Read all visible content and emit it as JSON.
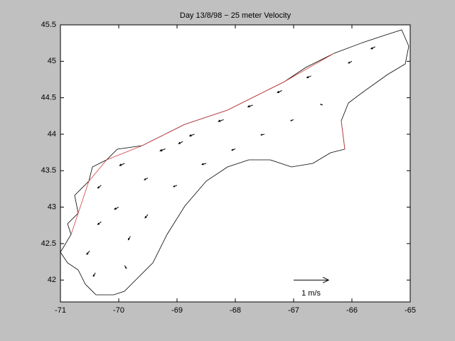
{
  "chart_data": {
    "type": "quiver",
    "title": "Day 13/8/98 − 25 meter Velocity",
    "xlim": [
      -71,
      -65
    ],
    "ylim": [
      41.7,
      45.5
    ],
    "xticks": [
      -71,
      -70,
      -69,
      -68,
      -67,
      -66,
      -65
    ],
    "yticks": [
      42,
      42.5,
      43,
      43.5,
      44,
      44.5,
      45,
      45.5
    ],
    "color": "#000000",
    "x": [
      -70.5,
      -70.3,
      -70.0,
      -69.8,
      -70.3,
      -69.9,
      -69.5,
      -69.5,
      -69.2,
      -69.0,
      -68.7,
      -68.5,
      -68.2,
      -68.0,
      -67.7,
      -67.5,
      -67.2,
      -67.0,
      -66.7,
      -66.5,
      -66.0,
      -65.6,
      -69.9,
      -70.4,
      -68.9
    ],
    "y": [
      42.4,
      42.8,
      43.0,
      42.6,
      43.3,
      43.6,
      43.4,
      42.9,
      43.8,
      43.3,
      44.0,
      43.6,
      44.2,
      43.8,
      44.4,
      44.0,
      44.6,
      44.2,
      44.8,
      44.4,
      45.0,
      45.2,
      42.2,
      42.1,
      43.9
    ],
    "u": [
      -0.08,
      -0.1,
      -0.12,
      -0.06,
      -0.1,
      -0.14,
      -0.1,
      -0.08,
      -0.15,
      -0.1,
      -0.14,
      -0.12,
      -0.15,
      -0.1,
      -0.14,
      -0.1,
      -0.13,
      -0.08,
      -0.12,
      -0.06,
      -0.1,
      -0.12,
      0.05,
      -0.06,
      -0.12
    ],
    "v": [
      -0.1,
      -0.08,
      -0.06,
      -0.1,
      -0.08,
      -0.06,
      -0.05,
      -0.1,
      -0.06,
      -0.04,
      -0.05,
      -0.03,
      -0.05,
      -0.04,
      -0.05,
      -0.02,
      -0.06,
      -0.03,
      -0.05,
      0.02,
      -0.05,
      -0.06,
      -0.08,
      -0.1,
      -0.06
    ],
    "reference_arrow": {
      "x": -67,
      "y": 42,
      "u": 1,
      "v": 0,
      "label": "1 m/s"
    }
  }
}
